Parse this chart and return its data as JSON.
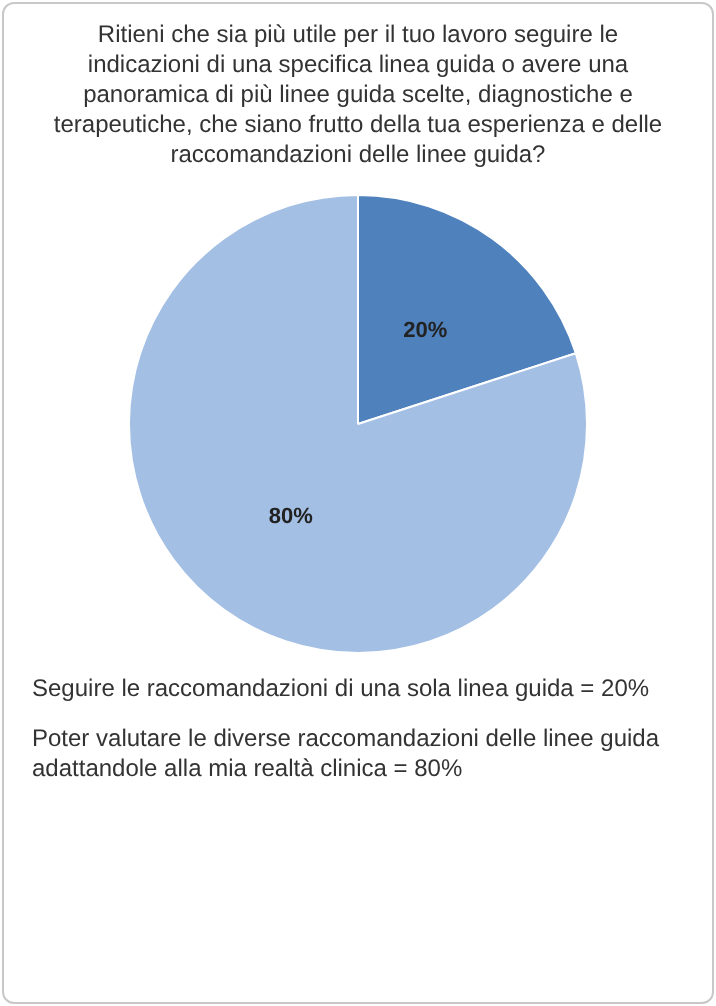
{
  "chart_data": {
    "type": "pie",
    "title": "Ritieni che sia più utile per il tuo lavoro seguire le indicazioni di una specifica linea guida o avere una panoramica di più linee guida scelte, diagnostiche e terapeutiche, che siano frutto della tua esperienza e delle raccomandazioni delle linee guida?",
    "categories": [
      null,
      null
    ],
    "values": [
      20,
      80
    ],
    "colors": [
      "#4f81bd",
      "#a3bfe4"
    ],
    "value_labels": [
      "20%",
      "80%"
    ],
    "legend": false,
    "annotations": [
      "Seguire le raccomandazioni di una sola linea guida = 20%",
      "Poter valutare le diverse raccomandazioni delle linee guida adattandole alla mia realtà clinica = 80%"
    ]
  }
}
